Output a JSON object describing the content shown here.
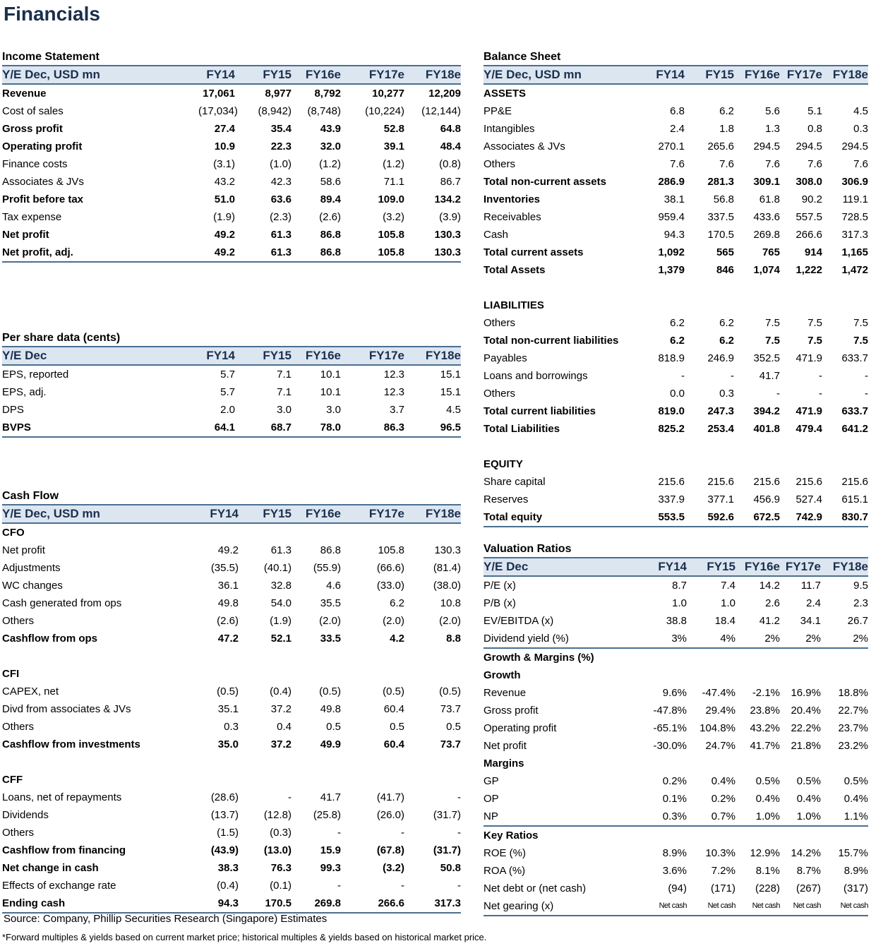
{
  "title": "Financials",
  "income": {
    "title": "Income Statement",
    "headers": [
      "Y/E Dec, USD mn",
      "FY14",
      "FY15",
      "FY16e",
      "FY17e",
      "FY18e"
    ],
    "rows": [
      {
        "label": "Revenue",
        "bold": true,
        "v": [
          "17,061",
          "8,977",
          "8,792",
          "10,277",
          "12,209"
        ]
      },
      {
        "label": "Cost of sales",
        "v": [
          "(17,034)",
          "(8,942)",
          "(8,748)",
          "(10,224)",
          "(12,144)"
        ]
      },
      {
        "label": "Gross profit",
        "bold": true,
        "v": [
          "27.4",
          "35.4",
          "43.9",
          "52.8",
          "64.8"
        ]
      },
      {
        "label": "Operating profit",
        "bold": true,
        "v": [
          "10.9",
          "22.3",
          "32.0",
          "39.1",
          "48.4"
        ]
      },
      {
        "label": "Finance costs",
        "v": [
          "(3.1)",
          "(1.0)",
          "(1.2)",
          "(1.2)",
          "(0.8)"
        ]
      },
      {
        "label": "Associates & JVs",
        "v": [
          "43.2",
          "42.3",
          "58.6",
          "71.1",
          "86.7"
        ]
      },
      {
        "label": "Profit before tax",
        "bold": true,
        "v": [
          "51.0",
          "63.6",
          "89.4",
          "109.0",
          "134.2"
        ]
      },
      {
        "label": "Tax expense",
        "v": [
          "(1.9)",
          "(2.3)",
          "(2.6)",
          "(3.2)",
          "(3.9)"
        ]
      },
      {
        "label": "Net profit",
        "bold": true,
        "v": [
          "49.2",
          "61.3",
          "86.8",
          "105.8",
          "130.3"
        ]
      },
      {
        "label": "Net profit, adj.",
        "bold": true,
        "end": true,
        "v": [
          "49.2",
          "61.3",
          "86.8",
          "105.8",
          "130.3"
        ]
      }
    ]
  },
  "pershare": {
    "title": "Per share data (cents)",
    "headers": [
      "Y/E Dec",
      "FY14",
      "FY15",
      "FY16e",
      "FY17e",
      "FY18e"
    ],
    "rows": [
      {
        "label": "EPS, reported",
        "v": [
          "5.7",
          "7.1",
          "10.1",
          "12.3",
          "15.1"
        ]
      },
      {
        "label": "EPS, adj.",
        "v": [
          "5.7",
          "7.1",
          "10.1",
          "12.3",
          "15.1"
        ]
      },
      {
        "label": "DPS",
        "v": [
          "2.0",
          "3.0",
          "3.0",
          "3.7",
          "4.5"
        ]
      },
      {
        "label": "BVPS",
        "bold": true,
        "boldlabel": true,
        "end": true,
        "v": [
          "64.1",
          "68.7",
          "78.0",
          "86.3",
          "96.5"
        ]
      }
    ]
  },
  "cashflow": {
    "title": "Cash Flow",
    "headers": [
      "Y/E Dec, USD mn",
      "FY14",
      "FY15",
      "FY16e",
      "FY17e",
      "FY18e"
    ],
    "rows": [
      {
        "label": "CFO",
        "bold": true,
        "v": [
          "",
          "",
          "",
          "",
          ""
        ]
      },
      {
        "label": "Net profit",
        "v": [
          "49.2",
          "61.3",
          "86.8",
          "105.8",
          "130.3"
        ]
      },
      {
        "label": "Adjustments",
        "v": [
          "(35.5)",
          "(40.1)",
          "(55.9)",
          "(66.6)",
          "(81.4)"
        ]
      },
      {
        "label": "WC changes",
        "v": [
          "36.1",
          "32.8",
          "4.6",
          "(33.0)",
          "(38.0)"
        ]
      },
      {
        "label": "Cash generated from ops",
        "v": [
          "49.8",
          "54.0",
          "35.5",
          "6.2",
          "10.8"
        ]
      },
      {
        "label": "Others",
        "v": [
          "(2.6)",
          "(1.9)",
          "(2.0)",
          "(2.0)",
          "(2.0)"
        ]
      },
      {
        "label": "Cashflow from ops",
        "bold": true,
        "v": [
          "47.2",
          "52.1",
          "33.5",
          "4.2",
          "8.8"
        ]
      },
      {
        "label": "",
        "v": [
          "",
          "",
          "",
          "",
          ""
        ]
      },
      {
        "label": "CFI",
        "bold": true,
        "v": [
          "",
          "",
          "",
          "",
          ""
        ]
      },
      {
        "label": "CAPEX, net",
        "v": [
          "(0.5)",
          "(0.4)",
          "(0.5)",
          "(0.5)",
          "(0.5)"
        ]
      },
      {
        "label": "Divd from associates & JVs",
        "v": [
          "35.1",
          "37.2",
          "49.8",
          "60.4",
          "73.7"
        ]
      },
      {
        "label": "Others",
        "v": [
          "0.3",
          "0.4",
          "0.5",
          "0.5",
          "0.5"
        ]
      },
      {
        "label": "Cashflow from investments",
        "bold": true,
        "v": [
          "35.0",
          "37.2",
          "49.9",
          "60.4",
          "73.7"
        ]
      },
      {
        "label": "",
        "v": [
          "",
          "",
          "",
          "",
          ""
        ]
      },
      {
        "label": "CFF",
        "bold": true,
        "v": [
          "",
          "",
          "",
          "",
          ""
        ]
      },
      {
        "label": "Loans, net of repayments",
        "v": [
          "(28.6)",
          "-",
          "41.7",
          "(41.7)",
          "-"
        ]
      },
      {
        "label": "Dividends",
        "v": [
          "(13.7)",
          "(12.8)",
          "(25.8)",
          "(26.0)",
          "(31.7)"
        ]
      },
      {
        "label": "Others",
        "v": [
          "(1.5)",
          "(0.3)",
          "-",
          "-",
          "-"
        ]
      },
      {
        "label": "Cashflow from financing",
        "bold": true,
        "v": [
          "(43.9)",
          "(13.0)",
          "15.9",
          "(67.8)",
          "(31.7)"
        ]
      },
      {
        "label": "Net change in cash",
        "bold": true,
        "v": [
          "38.3",
          "76.3",
          "99.3",
          "(3.2)",
          "50.8"
        ]
      },
      {
        "label": "Effects of exchange rate",
        "v": [
          "(0.4)",
          "(0.1)",
          "-",
          "-",
          "-"
        ]
      },
      {
        "label": "Ending cash",
        "bold": true,
        "end": true,
        "v": [
          "94.3",
          "170.5",
          "269.8",
          "266.6",
          "317.3"
        ]
      }
    ]
  },
  "balance": {
    "title": "Balance Sheet",
    "headers": [
      "Y/E Dec, USD mn",
      "FY14",
      "FY15",
      "FY16e",
      "FY17e",
      "FY18e"
    ],
    "rows": [
      {
        "label": "ASSETS",
        "bold": true,
        "v": [
          "",
          "",
          "",
          "",
          ""
        ]
      },
      {
        "label": "PP&E",
        "v": [
          "6.8",
          "6.2",
          "5.6",
          "5.1",
          "4.5"
        ]
      },
      {
        "label": "Intangibles",
        "v": [
          "2.4",
          "1.8",
          "1.3",
          "0.8",
          "0.3"
        ]
      },
      {
        "label": "Associates & JVs",
        "v": [
          "270.1",
          "265.6",
          "294.5",
          "294.5",
          "294.5"
        ]
      },
      {
        "label": "Others",
        "v": [
          "7.6",
          "7.6",
          "7.6",
          "7.6",
          "7.6"
        ]
      },
      {
        "label": "Total non-current assets",
        "bold": true,
        "v": [
          "286.9",
          "281.3",
          "309.1",
          "308.0",
          "306.9"
        ]
      },
      {
        "label": "Inventories",
        "boldlabel": true,
        "v": [
          "38.1",
          "56.8",
          "61.8",
          "90.2",
          "119.1"
        ]
      },
      {
        "label": "Receivables",
        "v": [
          "959.4",
          "337.5",
          "433.6",
          "557.5",
          "728.5"
        ]
      },
      {
        "label": "Cash",
        "v": [
          "94.3",
          "170.5",
          "269.8",
          "266.6",
          "317.3"
        ]
      },
      {
        "label": "Total current assets",
        "bold": true,
        "v": [
          "1,092",
          "565",
          "765",
          "914",
          "1,165"
        ]
      },
      {
        "label": "Total Assets",
        "bold": true,
        "v": [
          "1,379",
          "846",
          "1,074",
          "1,222",
          "1,472"
        ]
      },
      {
        "label": "",
        "v": [
          "",
          "",
          "",
          "",
          ""
        ]
      },
      {
        "label": "LIABILITIES",
        "bold": true,
        "v": [
          "",
          "",
          "",
          "",
          ""
        ]
      },
      {
        "label": "Others",
        "v": [
          "6.2",
          "6.2",
          "7.5",
          "7.5",
          "7.5"
        ]
      },
      {
        "label": "Total non-current liabilities",
        "bold": true,
        "v": [
          "6.2",
          "6.2",
          "7.5",
          "7.5",
          "7.5"
        ]
      },
      {
        "label": "Payables",
        "v": [
          "818.9",
          "246.9",
          "352.5",
          "471.9",
          "633.7"
        ]
      },
      {
        "label": "Loans and borrowings",
        "v": [
          "-",
          "-",
          "41.7",
          "-",
          "-"
        ]
      },
      {
        "label": "Others",
        "v": [
          "0.0",
          "0.3",
          "-",
          "-",
          "-"
        ]
      },
      {
        "label": "Total current liabilities",
        "bold": true,
        "v": [
          "819.0",
          "247.3",
          "394.2",
          "471.9",
          "633.7"
        ]
      },
      {
        "label": "Total Liabilities",
        "bold": true,
        "v": [
          "825.2",
          "253.4",
          "401.8",
          "479.4",
          "641.2"
        ]
      },
      {
        "label": "",
        "v": [
          "",
          "",
          "",
          "",
          ""
        ]
      },
      {
        "label": "EQUITY",
        "bold": true,
        "v": [
          "",
          "",
          "",
          "",
          ""
        ]
      },
      {
        "label": "Share capital",
        "v": [
          "215.6",
          "215.6",
          "215.6",
          "215.6",
          "215.6"
        ]
      },
      {
        "label": "Reserves",
        "v": [
          "337.9",
          "377.1",
          "456.9",
          "527.4",
          "615.1"
        ]
      },
      {
        "label": "Total equity",
        "bold": true,
        "end": true,
        "v": [
          "553.5",
          "592.6",
          "672.5",
          "742.9",
          "830.7"
        ]
      }
    ]
  },
  "valuation": {
    "title": "Valuation Ratios",
    "headers": [
      "Y/E Dec",
      "FY14",
      "FY15",
      "FY16e",
      "FY17e",
      "FY18e"
    ],
    "rows": [
      {
        "label": "P/E (x)",
        "v": [
          "8.7",
          "7.4",
          "14.2",
          "11.7",
          "9.5"
        ]
      },
      {
        "label": "P/B (x)",
        "v": [
          "1.0",
          "1.0",
          "2.6",
          "2.4",
          "2.3"
        ]
      },
      {
        "label": "EV/EBITDA (x)",
        "v": [
          "38.8",
          "18.4",
          "41.2",
          "34.1",
          "26.7"
        ]
      },
      {
        "label": "Dividend yield (%)",
        "end": true,
        "v": [
          "3%",
          "4%",
          "2%",
          "2%",
          "2%"
        ]
      },
      {
        "label": "Growth & Margins (%)",
        "bold": true,
        "v": [
          "",
          "",
          "",
          "",
          ""
        ]
      },
      {
        "label": "Growth",
        "bold": true,
        "v": [
          "",
          "",
          "",
          "",
          ""
        ]
      },
      {
        "label": "Revenue",
        "v": [
          "9.6%",
          "-47.4%",
          "-2.1%",
          "16.9%",
          "18.8%"
        ]
      },
      {
        "label": "Gross profit",
        "v": [
          "-47.8%",
          "29.4%",
          "23.8%",
          "20.4%",
          "22.7%"
        ]
      },
      {
        "label": "Operating profit",
        "v": [
          "-65.1%",
          "104.8%",
          "43.2%",
          "22.2%",
          "23.7%"
        ]
      },
      {
        "label": "Net profit",
        "v": [
          "-30.0%",
          "24.7%",
          "41.7%",
          "21.8%",
          "23.2%"
        ]
      },
      {
        "label": "Margins",
        "bold": true,
        "v": [
          "",
          "",
          "",
          "",
          ""
        ]
      },
      {
        "label": "GP",
        "v": [
          "0.2%",
          "0.4%",
          "0.5%",
          "0.5%",
          "0.5%"
        ]
      },
      {
        "label": "OP",
        "v": [
          "0.1%",
          "0.2%",
          "0.4%",
          "0.4%",
          "0.4%"
        ]
      },
      {
        "label": "NP",
        "end": true,
        "v": [
          "0.3%",
          "0.7%",
          "1.0%",
          "1.0%",
          "1.1%"
        ]
      },
      {
        "label": "Key Ratios",
        "bold": true,
        "v": [
          "",
          "",
          "",
          "",
          ""
        ]
      },
      {
        "label": "ROE (%)",
        "v": [
          "8.9%",
          "10.3%",
          "12.9%",
          "14.2%",
          "15.7%"
        ]
      },
      {
        "label": "ROA (%)",
        "v": [
          "3.6%",
          "7.2%",
          "8.1%",
          "8.7%",
          "8.9%"
        ]
      },
      {
        "label": "Net debt or (net cash)",
        "v": [
          "(94)",
          "(171)",
          "(228)",
          "(267)",
          "(317)"
        ]
      },
      {
        "label": "Net gearing (x)",
        "small": true,
        "end": true,
        "v": [
          "Net cash",
          "Net cash",
          "Net cash",
          "Net cash",
          "Net cash"
        ]
      }
    ]
  },
  "footnotes": {
    "source": "Source: Company, Phillip Securities Research (Singapore) Estimates",
    "note": "*Forward multiples & yields based on current market price; historical multiples & yields based on historical market price."
  }
}
